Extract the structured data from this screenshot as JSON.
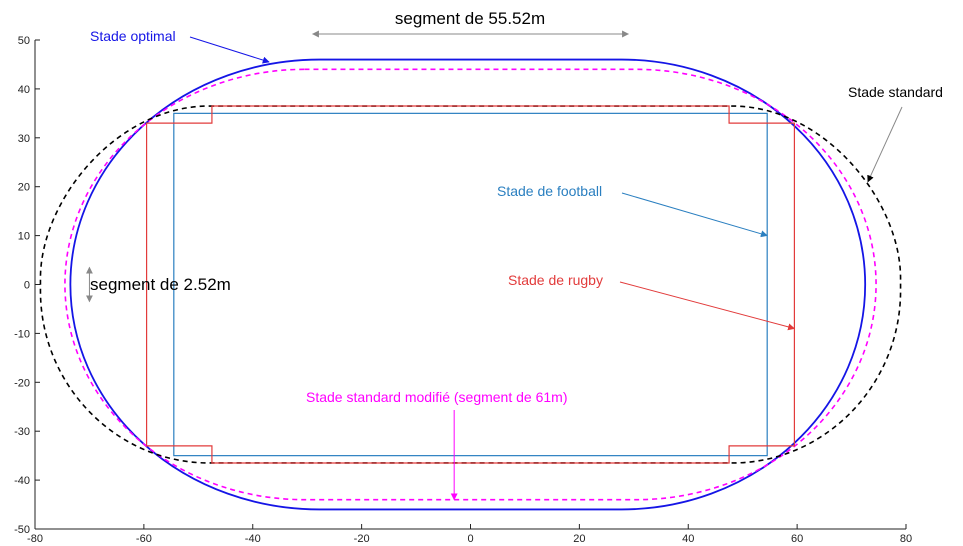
{
  "chart_data": {
    "type": "line",
    "title": "",
    "xlabel": "",
    "ylabel": "",
    "xlim": [
      -80,
      80
    ],
    "ylim": [
      -50,
      50
    ],
    "x_ticks": [
      -80,
      -60,
      -40,
      -20,
      0,
      20,
      40,
      60,
      80
    ],
    "y_ticks": [
      -50,
      -40,
      -30,
      -20,
      -10,
      0,
      10,
      20,
      30,
      40,
      50
    ],
    "grid": false,
    "series": [
      {
        "name": "Stade optimal",
        "shape": "stadium",
        "color": "#1515e6",
        "line_style": "solid",
        "straight_x": [
          -27.76,
          27.76
        ],
        "half_height": 46,
        "curve_x_extent": [
          -73.5,
          72.5
        ]
      },
      {
        "name": "Stade standard modifié (segment de 61m)",
        "shape": "stadium",
        "color": "#ff00ff",
        "line_style": "dashed",
        "straight_x": [
          -30.5,
          30.5
        ],
        "half_height": 44,
        "curve_x_extent": [
          -74.5,
          74.5
        ]
      },
      {
        "name": "Stade standard",
        "shape": "ellipse-like",
        "color": "#000000",
        "line_style": "dashed",
        "straight_x": [
          -48,
          48
        ],
        "half_height": 36.5,
        "x_extent": [
          -79,
          79
        ],
        "side_segment_y": [
          -1.26,
          1.26
        ]
      },
      {
        "name": "Stade de football",
        "shape": "rectangle",
        "color": "#2a7fc0",
        "line_style": "solid",
        "x": [
          -54.5,
          54.5
        ],
        "y": [
          -35,
          35
        ]
      },
      {
        "name": "Stade de rugby",
        "shape": "rectangle-with-ingoal",
        "color": "#e23b3b",
        "line_style": "solid",
        "x": [
          -59.5,
          59.5
        ],
        "y": [
          -33,
          33
        ],
        "ingoal_x": [
          -47.5,
          47.5
        ],
        "ingoal_y": [
          -36.5,
          36.5
        ]
      }
    ],
    "annotations": [
      {
        "text": "segment de 55.52m",
        "color": "#000000",
        "x_range": [
          -29,
          29
        ],
        "y": 46.5
      },
      {
        "text": "segment de 2.52m",
        "color": "#000000",
        "x": -70,
        "y_range": [
          -3.5,
          3.5
        ]
      },
      {
        "text": "Stade optimal",
        "color": "#1515e6",
        "target": [
          -37,
          45.5
        ]
      },
      {
        "text": "Stade standard",
        "color": "#000000",
        "target": [
          73,
          21
        ]
      },
      {
        "text": "Stade de football",
        "color": "#2a7fc0",
        "target": [
          54.5,
          10
        ]
      },
      {
        "text": "Stade de rugby",
        "color": "#e23b3b",
        "target": [
          59.5,
          -9
        ]
      },
      {
        "text": "Stade standard modifié (segment de 61m)",
        "color": "#ff00ff",
        "target": [
          -3,
          -44
        ]
      }
    ]
  }
}
